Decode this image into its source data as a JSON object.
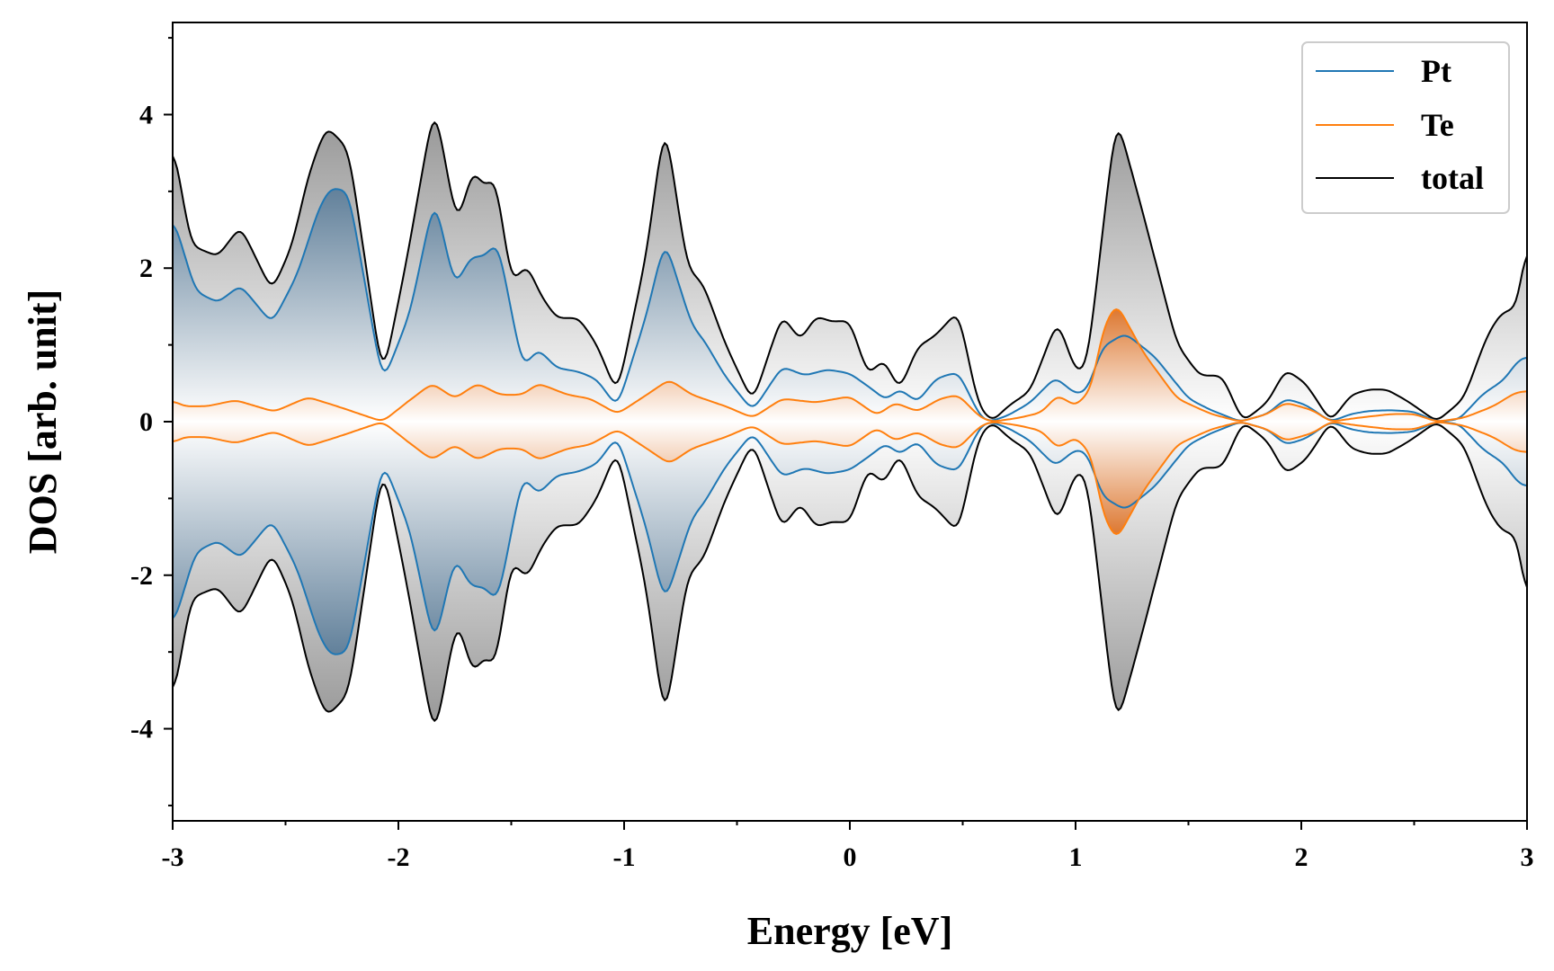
{
  "chart_data": {
    "type": "area",
    "title": "",
    "xlabel": "Energy [eV]",
    "ylabel": "DOS [arb. unit]",
    "xlim": [
      -3,
      3
    ],
    "ylim": [
      -5.2,
      5.2
    ],
    "xticks": [
      -3,
      -2,
      -1,
      0,
      1,
      2,
      3
    ],
    "xtick_labels": [
      "-3",
      "-2",
      "-1",
      "0",
      "1",
      "2",
      "3"
    ],
    "yticks": [
      -4,
      -2,
      0,
      2,
      4
    ],
    "ytick_labels": [
      "-4",
      "-2",
      "0",
      "2",
      "4"
    ],
    "mirrored": true,
    "legend_position": "top-right",
    "series": [
      {
        "name": "Pt",
        "color": "#1f77b4",
        "fill_color": "#4a6f8f",
        "x": [
          -3.0,
          -2.9,
          -2.8,
          -2.7,
          -2.56,
          -2.45,
          -2.35,
          -2.3,
          -2.22,
          -2.07,
          -1.95,
          -1.84,
          -1.75,
          -1.68,
          -1.62,
          -1.56,
          -1.45,
          -1.38,
          -1.3,
          -1.2,
          -1.12,
          -1.03,
          -0.9,
          -0.82,
          -0.7,
          -0.65,
          -0.55,
          -0.43,
          -0.3,
          -0.2,
          -0.1,
          0.0,
          0.1,
          0.16,
          0.22,
          0.3,
          0.38,
          0.48,
          0.58,
          0.62,
          0.7,
          0.8,
          0.91,
          1.0,
          1.05,
          1.12,
          1.22,
          1.35,
          1.5,
          1.6,
          1.73,
          1.85,
          1.93,
          2.02,
          2.13,
          2.22,
          2.3,
          2.4,
          2.5,
          2.6,
          2.7,
          2.8,
          2.9,
          2.96,
          3.0
        ],
        "values": [
          2.7,
          1.7,
          1.55,
          1.78,
          1.28,
          1.9,
          2.8,
          3.05,
          3.0,
          0.5,
          1.4,
          2.93,
          1.75,
          2.15,
          2.15,
          2.35,
          0.7,
          0.95,
          0.7,
          0.65,
          0.55,
          0.18,
          1.4,
          2.38,
          1.25,
          1.08,
          0.58,
          0.14,
          0.72,
          0.6,
          0.68,
          0.63,
          0.42,
          0.28,
          0.43,
          0.25,
          0.56,
          0.65,
          0.05,
          0.0,
          0.08,
          0.25,
          0.58,
          0.36,
          0.4,
          0.98,
          1.15,
          0.85,
          0.3,
          0.15,
          0.0,
          0.1,
          0.3,
          0.22,
          0.0,
          0.1,
          0.14,
          0.15,
          0.13,
          0.0,
          0.03,
          0.35,
          0.55,
          0.8,
          0.85
        ]
      },
      {
        "name": "Te",
        "color": "#ff7f0e",
        "fill_color": "#e07a2a",
        "x": [
          -3.0,
          -2.95,
          -2.85,
          -2.72,
          -2.55,
          -2.4,
          -2.25,
          -2.07,
          -1.95,
          -1.85,
          -1.75,
          -1.65,
          -1.55,
          -1.45,
          -1.38,
          -1.25,
          -1.15,
          -1.03,
          -0.9,
          -0.8,
          -0.7,
          -0.55,
          -0.43,
          -0.3,
          -0.15,
          0.0,
          0.12,
          0.2,
          0.3,
          0.4,
          0.48,
          0.58,
          0.63,
          0.75,
          0.85,
          0.92,
          1.0,
          1.07,
          1.12,
          1.18,
          1.3,
          1.45,
          1.6,
          1.73,
          1.85,
          1.93,
          2.05,
          2.13,
          2.25,
          2.4,
          2.5,
          2.6,
          2.72,
          2.85,
          2.95,
          3.0
        ],
        "values": [
          0.28,
          0.2,
          0.2,
          0.28,
          0.13,
          0.32,
          0.18,
          0.0,
          0.28,
          0.5,
          0.3,
          0.5,
          0.35,
          0.35,
          0.5,
          0.35,
          0.3,
          0.1,
          0.35,
          0.55,
          0.35,
          0.2,
          0.05,
          0.3,
          0.25,
          0.33,
          0.08,
          0.25,
          0.13,
          0.3,
          0.35,
          0.05,
          0.0,
          0.05,
          0.12,
          0.35,
          0.2,
          0.42,
          1.2,
          1.55,
          0.9,
          0.3,
          0.1,
          0.0,
          0.1,
          0.25,
          0.15,
          0.0,
          0.05,
          0.1,
          0.1,
          0.0,
          0.05,
          0.2,
          0.38,
          0.4
        ]
      },
      {
        "name": "total",
        "color": "#000000",
        "fill_color": "#808080",
        "x": [
          -3.0,
          -2.92,
          -2.8,
          -2.7,
          -2.56,
          -2.47,
          -2.4,
          -2.32,
          -2.22,
          -2.07,
          -1.97,
          -1.84,
          -1.74,
          -1.67,
          -1.62,
          -1.57,
          -1.5,
          -1.43,
          -1.37,
          -1.3,
          -1.2,
          -1.12,
          -1.03,
          -0.9,
          -0.82,
          -0.72,
          -0.65,
          -0.55,
          -0.43,
          -0.3,
          -0.22,
          -0.15,
          -0.08,
          0.0,
          0.08,
          0.15,
          0.22,
          0.3,
          0.37,
          0.42,
          0.48,
          0.57,
          0.63,
          0.7,
          0.8,
          0.92,
          1.0,
          1.05,
          1.18,
          1.3,
          1.45,
          1.55,
          1.65,
          1.74,
          1.85,
          1.93,
          2.02,
          2.13,
          2.22,
          2.3,
          2.38,
          2.48,
          2.6,
          2.72,
          2.82,
          2.88,
          2.96,
          3.0
        ],
        "values": [
          3.7,
          2.3,
          2.15,
          2.55,
          1.7,
          2.3,
          3.2,
          3.85,
          3.55,
          0.55,
          2.0,
          4.15,
          2.55,
          3.3,
          3.05,
          3.2,
          1.8,
          2.05,
          1.65,
          1.35,
          1.35,
          1.0,
          0.35,
          2.2,
          3.95,
          2.0,
          1.8,
          1.0,
          0.25,
          1.4,
          1.05,
          1.38,
          1.3,
          1.32,
          0.6,
          0.82,
          0.4,
          0.98,
          1.1,
          1.25,
          1.45,
          0.2,
          0.0,
          0.2,
          0.4,
          1.33,
          0.65,
          0.7,
          4.0,
          2.7,
          1.0,
          0.6,
          0.6,
          0.0,
          0.25,
          0.68,
          0.5,
          0.0,
          0.35,
          0.42,
          0.42,
          0.25,
          0.0,
          0.3,
          1.1,
          1.4,
          1.5,
          2.5
        ]
      }
    ]
  }
}
